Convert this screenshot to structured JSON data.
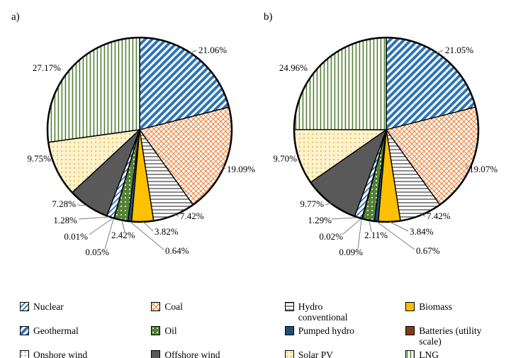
{
  "chart_data": [
    {
      "type": "pie",
      "title": "a)",
      "categories": [
        "Geothermal",
        "Coal",
        "Hydro conventional",
        "Biomass",
        "Pumped hydro",
        "Oil",
        "Onshore wind",
        "Batteries (utility scale)",
        "Nuclear",
        "Offshore wind",
        "Solar PV",
        "LNG"
      ],
      "values": [
        21.06,
        19.09,
        7.42,
        3.82,
        0.64,
        2.42,
        0.05,
        0.01,
        1.28,
        7.28,
        9.75,
        27.17
      ],
      "labels": [
        "21.06%",
        "19.09%",
        "7.42%",
        "3.82%",
        "0.64%",
        "2.42%",
        "0.05%",
        "0.01%",
        "1.28%",
        "7.28%",
        "9.75%",
        "27.17%"
      ],
      "unit": "%",
      "start_angle_deg": 0,
      "direction": "clockwise"
    },
    {
      "type": "pie",
      "title": "b)",
      "categories": [
        "Geothermal",
        "Coal",
        "Hydro conventional",
        "Biomass",
        "Pumped hydro",
        "Oil",
        "Onshore wind",
        "Batteries (utility scale)",
        "Nuclear",
        "Offshore wind",
        "Solar PV",
        "LNG"
      ],
      "values": [
        21.05,
        19.07,
        7.42,
        3.84,
        0.67,
        2.11,
        0.09,
        0.02,
        1.29,
        9.77,
        9.7,
        24.96
      ],
      "labels": [
        "21.05%",
        "19.07%",
        "7.42%",
        "3.84%",
        "0.67%",
        "2.11%",
        "0.09%",
        "0.02%",
        "1.29%",
        "9.77%",
        "9.70%",
        "24.96%"
      ],
      "unit": "%",
      "start_angle_deg": 0,
      "direction": "clockwise"
    }
  ],
  "legend": {
    "columns": [
      [
        {
          "label": "Nuclear"
        },
        {
          "label": "Geothermal"
        },
        {
          "label": "Onshore wind"
        }
      ],
      [
        {
          "label": "Coal"
        },
        {
          "label": "Oil"
        },
        {
          "label": "Offshore wind"
        }
      ],
      [
        {
          "label": "Hydro conventional"
        },
        {
          "label": "Pumped hydro"
        },
        {
          "label": "Solar PV"
        }
      ],
      [
        {
          "label": "Biomass"
        },
        {
          "label": "Batteries (utility scale)"
        },
        {
          "label": "LNG"
        }
      ]
    ]
  },
  "colors": {
    "nuclear_stripe": "#2E75B6",
    "geothermal_stripe": "#2E75B6",
    "coal_hatch": "#ED7D31",
    "oil_green": "#538135",
    "offshore_gray": "#595959",
    "biomass_gold": "#FFC000",
    "pumped_navy": "#1F4E79",
    "batteries_brown": "#843C0C",
    "solar_cream": "#FFF2CC",
    "lng_stripe": "#538135",
    "outline": "#000000",
    "leader_gray": "#7f7f7f"
  }
}
